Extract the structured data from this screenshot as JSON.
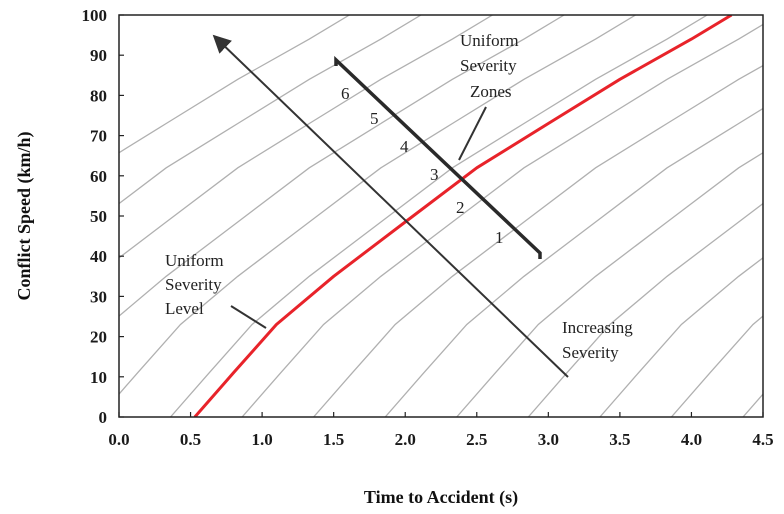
{
  "chart_data": {
    "type": "line",
    "xlabel": "Time to Accident (s)",
    "ylabel": "Conflict Speed (km/h)",
    "xlim": [
      0.0,
      4.5
    ],
    "ylim": [
      0,
      100
    ],
    "x_ticks": [
      "0.0",
      "0.5",
      "1.0",
      "1.5",
      "2.0",
      "2.5",
      "3.0",
      "3.5",
      "4.0",
      "4.5"
    ],
    "y_ticks": [
      "0",
      "10",
      "20",
      "30",
      "40",
      "50",
      "60",
      "70",
      "80",
      "90",
      "100"
    ],
    "grid": false,
    "series": [
      {
        "color": "#e8232a",
        "x": [
          0.53,
          0.8,
          1.1,
          1.5,
          2.0,
          2.5,
          3.0,
          3.5,
          4.0,
          4.28
        ],
        "y": [
          0,
          11,
          23,
          35,
          48.5,
          62,
          73,
          84,
          94,
          100
        ]
      }
    ],
    "iso_curve_color": "#b0b0b0",
    "iso_curve_offsets": [
      -2.67,
      -2.17,
      -1.67,
      -1.17,
      -0.67,
      -0.17,
      0.33,
      0.83,
      1.33,
      1.83,
      2.33,
      2.83,
      3.33,
      3.83
    ],
    "annotations": {
      "uniform_severity_level": [
        "Uniform",
        "Severity",
        "Level"
      ],
      "uniform_severity_zones": [
        "Uniform",
        "Severity",
        "Zones"
      ],
      "increasing_severity": [
        "Increasing",
        "Severity"
      ],
      "zones": [
        "1",
        "2",
        "3",
        "4",
        "5",
        "6"
      ]
    },
    "colors": {
      "arrow": "#333333",
      "zone_line": "#2a2a2a"
    }
  }
}
